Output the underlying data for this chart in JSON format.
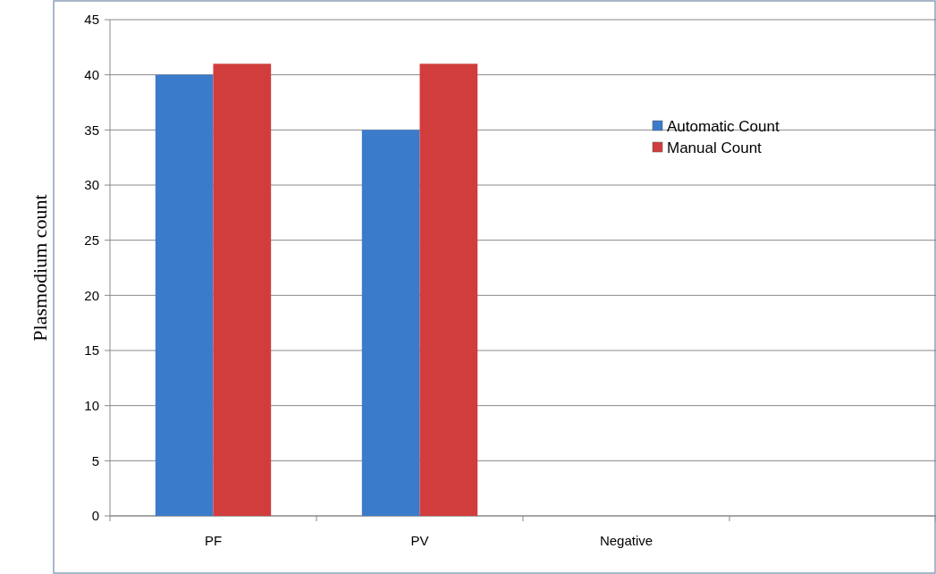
{
  "chart_data": {
    "type": "bar",
    "ylabel": "Plasmodium count",
    "categories": [
      "PF",
      "PV",
      "Negative",
      null
    ],
    "series": [
      {
        "name": "Automatic Count",
        "color": "#3b7bcc",
        "values": [
          40,
          35,
          0,
          null
        ]
      },
      {
        "name": "Manual Count",
        "color": "#d13d3d",
        "values": [
          41,
          41,
          0,
          null
        ]
      }
    ],
    "ylim": [
      0,
      45
    ],
    "yticks": [
      0,
      5,
      10,
      15,
      20,
      25,
      30,
      35,
      40,
      45
    ],
    "grid": "y",
    "legend": "top right"
  }
}
